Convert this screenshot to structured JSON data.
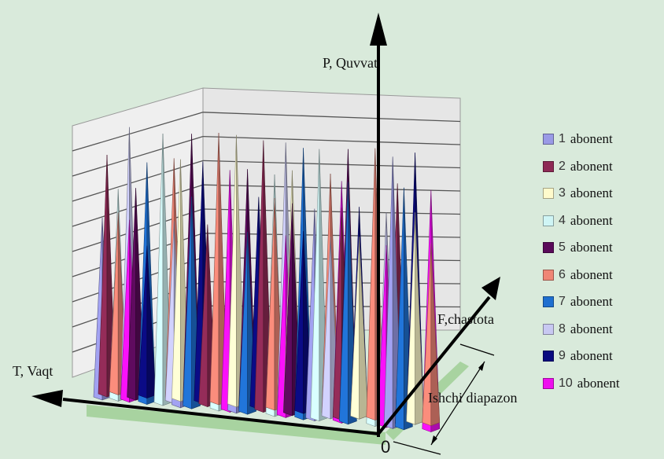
{
  "chart_data": {
    "type": "bar",
    "style": "3d-cone",
    "axes": {
      "power": "P, Quvvat",
      "time": "T, Vaqt",
      "frequency": "F,chastota",
      "origin": "0",
      "range": "Ishchi diapazon"
    },
    "grid": true,
    "legend_position": "right",
    "series": [
      {
        "num": "1",
        "name": "abonent",
        "color": "#9a9ae6"
      },
      {
        "num": "2",
        "name": "abonent",
        "color": "#8e2a55"
      },
      {
        "num": "3",
        "name": "abonent",
        "color": "#fffbcc"
      },
      {
        "num": "4",
        "name": "abonent",
        "color": "#cff5f5"
      },
      {
        "num": "5",
        "name": "abonent",
        "color": "#5a0a5a"
      },
      {
        "num": "6",
        "name": "abonent",
        "color": "#ef8676"
      },
      {
        "num": "7",
        "name": "abonent",
        "color": "#1f6fd0"
      },
      {
        "num": "8",
        "name": "abonent",
        "color": "#c8c8f2"
      },
      {
        "num": "9",
        "name": "abonent",
        "color": "#0a0a80"
      },
      {
        "num": "10",
        "name": "abonent",
        "color": "#ee10ee"
      }
    ],
    "spikes": [
      [
        0,
        0,
        6
      ],
      [
        0,
        1,
        8
      ],
      [
        1,
        3,
        7
      ],
      [
        1,
        5,
        6
      ],
      [
        2,
        7,
        9
      ],
      [
        2,
        9,
        6
      ],
      [
        3,
        2,
        4
      ],
      [
        3,
        4,
        7
      ],
      [
        4,
        6,
        8
      ],
      [
        4,
        8,
        5
      ],
      [
        5,
        1,
        7
      ],
      [
        5,
        3,
        9
      ],
      [
        6,
        5,
        8
      ],
      [
        6,
        7,
        6
      ],
      [
        7,
        0,
        5
      ],
      [
        7,
        2,
        8
      ],
      [
        8,
        4,
        9
      ],
      [
        8,
        6,
        7
      ],
      [
        9,
        8,
        8
      ],
      [
        9,
        1,
        6
      ],
      [
        10,
        3,
        5
      ],
      [
        10,
        5,
        9
      ],
      [
        11,
        7,
        7
      ],
      [
        11,
        9,
        8
      ],
      [
        12,
        0,
        6
      ],
      [
        12,
        2,
        9
      ],
      [
        13,
        4,
        8
      ],
      [
        13,
        6,
        6
      ],
      [
        14,
        8,
        7
      ],
      [
        14,
        1,
        9
      ],
      [
        15,
        3,
        8
      ],
      [
        15,
        5,
        7
      ],
      [
        16,
        7,
        9
      ],
      [
        16,
        9,
        6
      ],
      [
        17,
        2,
        8
      ],
      [
        17,
        4,
        7
      ],
      [
        18,
        6,
        9
      ],
      [
        18,
        8,
        6
      ],
      [
        19,
        0,
        7
      ],
      [
        19,
        3,
        9
      ],
      [
        20,
        5,
        8
      ],
      [
        20,
        7,
        6
      ],
      [
        21,
        9,
        8
      ],
      [
        21,
        1,
        7
      ],
      [
        22,
        4,
        9
      ],
      [
        22,
        6,
        8
      ],
      [
        23,
        8,
        7
      ],
      [
        23,
        2,
        6
      ],
      [
        24,
        3,
        8
      ],
      [
        24,
        5,
        9
      ],
      [
        25,
        7,
        7
      ],
      [
        25,
        9,
        6
      ],
      [
        26,
        1,
        8
      ],
      [
        26,
        0,
        9
      ],
      [
        27,
        4,
        7
      ],
      [
        27,
        6,
        8
      ],
      [
        28,
        8,
        9
      ],
      [
        28,
        2,
        7
      ],
      [
        29,
        9,
        8
      ],
      [
        29,
        5,
        6
      ]
    ]
  }
}
